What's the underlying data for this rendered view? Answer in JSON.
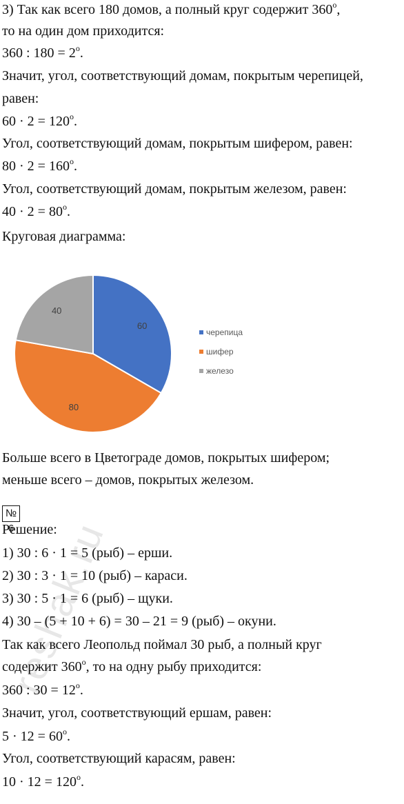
{
  "lines": [
    {
      "pre": "3) Так как всего 180 домов, а полный круг содержит 360",
      "sup": "о",
      "post": ","
    },
    {
      "pre": "то на один дом приходится:",
      "sup": "",
      "post": ""
    },
    {
      "pre": "360 : 180 = 2",
      "sup": "о",
      "post": "."
    },
    {
      "pre": "Значит, угол, соответствующий домам, покрытым черепицей,",
      "sup": "",
      "post": ""
    },
    {
      "pre": "равен:",
      "sup": "",
      "post": ""
    },
    {
      "pre": "60 · 2 = 120",
      "sup": "о",
      "post": "."
    },
    {
      "pre": "Угол, соответствующий домам, покрытым шифером, равен:",
      "sup": "",
      "post": ""
    },
    {
      "pre": "80 · 2 = 160",
      "sup": "о",
      "post": "."
    },
    {
      "pre": "Угол, соответствующий домам, покрытым железом, равен:",
      "sup": "",
      "post": ""
    },
    {
      "pre": "40 · 2 = 80",
      "sup": "о",
      "post": "."
    },
    {
      "pre": "Круговая диаграмма:",
      "sup": "",
      "post": ""
    },
    {
      "pre": "Больше всего в Цветограде домов, покрытых шифером;",
      "sup": "",
      "post": ""
    },
    {
      "pre": "меньше всего – домов, покрытых железом.",
      "sup": "",
      "post": ""
    },
    {
      "pre": "Решение:",
      "sup": "",
      "post": ""
    },
    {
      "pre": "1) 30 : 6 · 1 = 5 (рыб) – ерши.",
      "sup": "",
      "post": ""
    },
    {
      "pre": "2) 30 : 3 · 1 = 10 (рыб) – караси.",
      "sup": "",
      "post": ""
    },
    {
      "pre": "3) 30 : 5 · 1 = 6 (рыб) – щуки.",
      "sup": "",
      "post": ""
    },
    {
      "pre": "4) 30 – (5 + 10 + 6) = 30 – 21 = 9 (рыб) – окуни.",
      "sup": "",
      "post": ""
    },
    {
      "pre": "Так как всего Леопольд поймал 30 рыб, а полный круг",
      "sup": "",
      "post": ""
    },
    {
      "pre": "содержит 360",
      "sup": "о",
      "post": ", то на одну рыбу приходится:"
    },
    {
      "pre": "360 : 30 = 12",
      "sup": "о",
      "post": "."
    },
    {
      "pre": "Значит, угол, соответствующий ершам, равен:",
      "sup": "",
      "post": ""
    },
    {
      "pre": "5 · 12 = 60",
      "sup": "о",
      "post": "."
    },
    {
      "pre": "Угол, соответствующий карасям, равен:",
      "sup": "",
      "post": ""
    },
    {
      "pre": "10 · 12 = 120",
      "sup": "о",
      "post": "."
    }
  ],
  "task_number": "№ 6",
  "watermark": "reshak.ru",
  "chart_data": {
    "type": "pie",
    "categories": [
      "черепица",
      "шифер",
      "железо"
    ],
    "values": [
      60,
      80,
      40
    ],
    "colors": [
      "#4472c4",
      "#ed7d31",
      "#a5a5a5"
    ],
    "start_angle_deg": 0,
    "direction": "clockwise",
    "data_labels": true,
    "legend_position": "right"
  }
}
